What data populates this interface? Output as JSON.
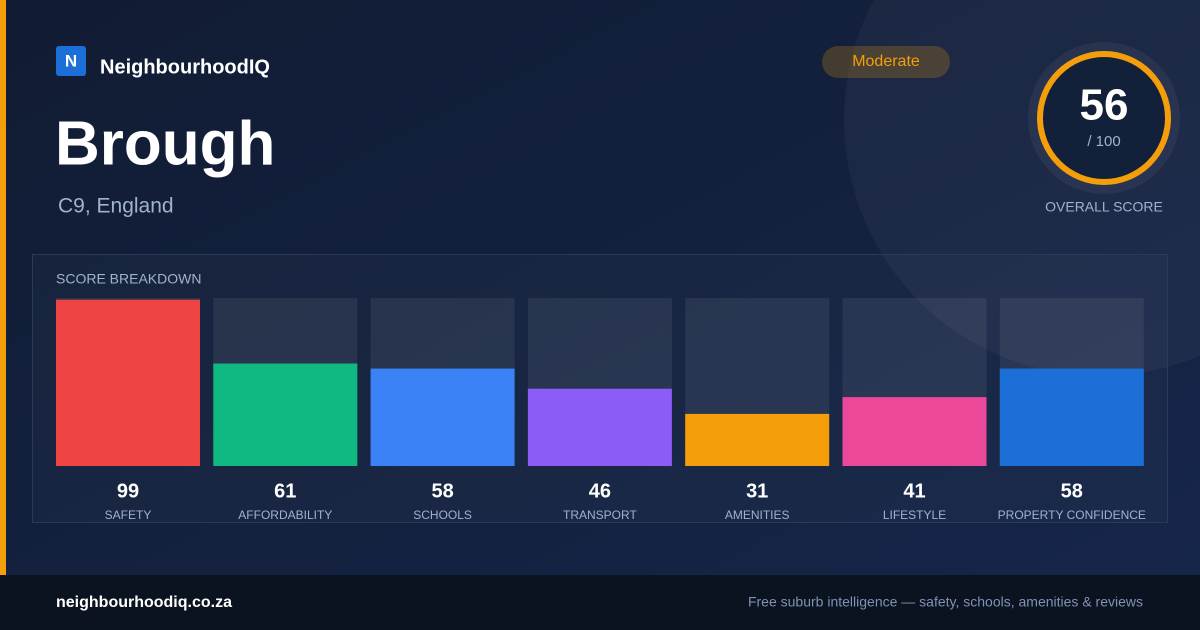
{
  "brand": {
    "logo": "N",
    "name": "NeighbourhoodIQ"
  },
  "badge": "Moderate",
  "title": "Brough",
  "subtitle": "C9, England",
  "overall": {
    "score": 56,
    "max": {
      "value": 100,
      "label": "/ 100"
    },
    "label": "OVERALL SCORE"
  },
  "breakdown": {
    "title": "SCORE BREAKDOWN",
    "items": [
      {
        "label": "SAFETY",
        "value": 99,
        "color": "#ef4444"
      },
      {
        "label": "AFFORDABILITY",
        "value": 61,
        "color": "#10b981"
      },
      {
        "label": "SCHOOLS",
        "value": 58,
        "color": "#3b82f6"
      },
      {
        "label": "TRANSPORT",
        "value": 46,
        "color": "#8b5cf6"
      },
      {
        "label": "AMENITIES",
        "value": 31,
        "color": "#f59e0b"
      },
      {
        "label": "LIFESTYLE",
        "value": 41,
        "color": "#ec4899"
      },
      {
        "label": "PROPERTY CONFIDENCE",
        "value": 58,
        "color": "#1d6fd8"
      }
    ]
  },
  "footer": {
    "url": "neighbourhoodiq.co.za",
    "tagline": "Free suburb intelligence — safety, schools, amenities & reviews"
  }
}
